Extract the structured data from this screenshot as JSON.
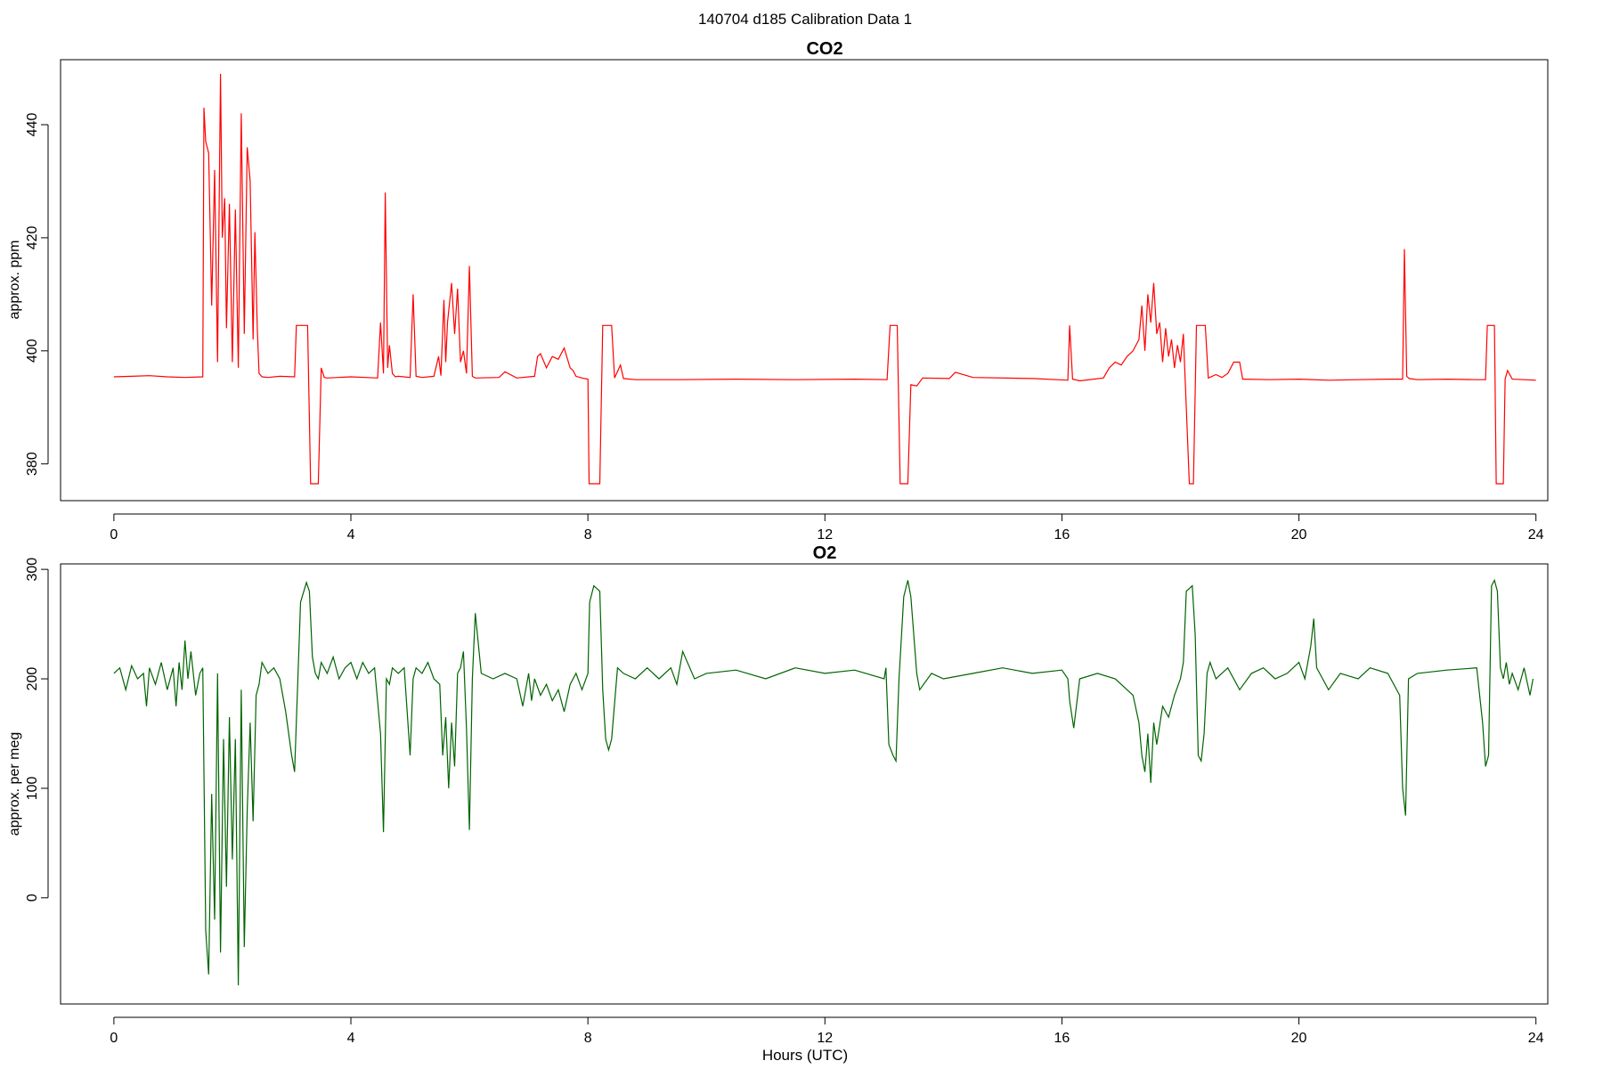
{
  "figure": {
    "suptitle": "140704   d185   Calibration Data 1",
    "xlabel": "Hours (UTC)"
  },
  "chart_data": [
    {
      "type": "line",
      "title": "CO2",
      "xlabel": "",
      "ylabel": "approx. ppm",
      "xlim": [
        -0.9,
        24.2
      ],
      "ylim": [
        373.5,
        451.5
      ],
      "xticks": [
        0,
        4,
        8,
        12,
        16,
        20,
        24
      ],
      "yticks": [
        380,
        400,
        420,
        440
      ],
      "color": "#ff0000",
      "grid": false,
      "series": [
        {
          "x": [
            0.0,
            0.3,
            0.6,
            0.9,
            1.2,
            1.5,
            1.52,
            1.55,
            1.6,
            1.65,
            1.7,
            1.75,
            1.8,
            1.83,
            1.87,
            1.9,
            1.95,
            2.0,
            2.05,
            2.1,
            2.15,
            2.2,
            2.25,
            2.3,
            2.35,
            2.38,
            2.42,
            2.45,
            2.5,
            2.6,
            2.8,
            3.05,
            3.08,
            3.2,
            3.27,
            3.32,
            3.45,
            3.5,
            3.55,
            3.6,
            4.0,
            4.45,
            4.5,
            4.55,
            4.58,
            4.62,
            4.65,
            4.7,
            4.75,
            4.8,
            5.0,
            5.05,
            5.1,
            5.2,
            5.4,
            5.48,
            5.52,
            5.57,
            5.6,
            5.63,
            5.7,
            5.75,
            5.8,
            5.85,
            5.9,
            5.95,
            6.0,
            6.05,
            6.1,
            6.5,
            6.6,
            6.8,
            7.1,
            7.15,
            7.2,
            7.3,
            7.4,
            7.5,
            7.6,
            7.7,
            7.75,
            7.8,
            7.9,
            8.0,
            8.02,
            8.2,
            8.25,
            8.4,
            8.45,
            8.55,
            8.6,
            8.8,
            9.5,
            10.5,
            11.5,
            12.5,
            13.05,
            13.1,
            13.22,
            13.27,
            13.4,
            13.45,
            13.55,
            13.65,
            14.1,
            14.2,
            14.5,
            15.5,
            16.1,
            16.13,
            16.18,
            16.3,
            16.7,
            16.8,
            16.9,
            17.0,
            17.1,
            17.2,
            17.3,
            17.35,
            17.4,
            17.45,
            17.5,
            17.55,
            17.6,
            17.65,
            17.7,
            17.75,
            17.8,
            17.85,
            17.9,
            17.95,
            18.0,
            18.05,
            18.08,
            18.15,
            18.22,
            18.27,
            18.42,
            18.47,
            18.6,
            18.7,
            18.8,
            18.9,
            19.0,
            19.05,
            19.5,
            20.0,
            20.5,
            21.0,
            21.5,
            21.75,
            21.78,
            21.82,
            21.86,
            22.0,
            22.5,
            23.0,
            23.15,
            23.18,
            23.3,
            23.33,
            23.35,
            23.45,
            23.48,
            23.52,
            23.6,
            24.0
          ],
          "y": [
            395.4,
            395.5,
            395.6,
            395.4,
            395.3,
            395.4,
            443.0,
            437.0,
            435.0,
            408.0,
            432.0,
            398.0,
            449.0,
            420.0,
            427.0,
            404.0,
            426.0,
            398.0,
            425.0,
            397.0,
            442.0,
            403.0,
            436.0,
            430.0,
            402.0,
            421.0,
            404.0,
            396.0,
            395.4,
            395.3,
            395.5,
            395.4,
            404.5,
            404.5,
            404.5,
            376.5,
            376.5,
            397.0,
            395.3,
            395.2,
            395.4,
            395.2,
            405.0,
            396.0,
            428.0,
            397.0,
            401.0,
            396.0,
            395.4,
            395.5,
            395.3,
            410.0,
            395.5,
            395.3,
            395.5,
            399.0,
            395.6,
            409.0,
            398.0,
            405.0,
            412.0,
            403.0,
            411.0,
            398.0,
            400.0,
            396.0,
            415.0,
            395.5,
            395.2,
            395.3,
            396.3,
            395.2,
            395.5,
            399.0,
            399.5,
            397.0,
            399.0,
            398.5,
            400.5,
            397.0,
            396.5,
            395.5,
            395.2,
            395.0,
            376.5,
            376.5,
            404.5,
            404.5,
            395.2,
            397.5,
            395.1,
            394.9,
            394.9,
            395.0,
            394.9,
            395.0,
            394.9,
            404.5,
            404.5,
            376.5,
            376.5,
            394.0,
            393.8,
            395.2,
            395.1,
            396.2,
            395.3,
            395.1,
            394.8,
            404.5,
            395.0,
            394.7,
            395.2,
            397.0,
            398.0,
            397.5,
            399.0,
            400.0,
            402.0,
            408.0,
            400.0,
            410.0,
            405.0,
            412.0,
            403.0,
            405.0,
            398.0,
            404.0,
            399.0,
            402.0,
            397.0,
            401.0,
            398.0,
            403.0,
            395.0,
            376.5,
            376.5,
            404.5,
            404.5,
            395.2,
            395.8,
            395.3,
            396.0,
            398.0,
            398.0,
            395.0,
            394.9,
            395.0,
            394.8,
            394.9,
            395.0,
            395.0,
            418.0,
            395.5,
            395.1,
            394.9,
            395.0,
            394.9,
            394.9,
            404.5,
            404.5,
            376.5,
            376.5,
            376.5,
            395.0,
            396.5,
            395.0,
            394.8
          ]
        }
      ]
    },
    {
      "type": "line",
      "title": "O2",
      "xlabel": "Hours (UTC)",
      "ylabel": "approx. per meg",
      "xlim": [
        -0.9,
        24.2
      ],
      "ylim": [
        -97,
        305
      ],
      "xticks": [
        0,
        4,
        8,
        12,
        16,
        20,
        24
      ],
      "yticks": [
        0,
        100,
        200,
        300
      ],
      "color": "#006400",
      "grid": false,
      "series": [
        {
          "x": [
            0.0,
            0.1,
            0.2,
            0.3,
            0.4,
            0.5,
            0.55,
            0.6,
            0.7,
            0.8,
            0.9,
            1.0,
            1.05,
            1.1,
            1.15,
            1.2,
            1.25,
            1.3,
            1.38,
            1.45,
            1.5,
            1.55,
            1.6,
            1.65,
            1.7,
            1.75,
            1.8,
            1.85,
            1.9,
            1.95,
            2.0,
            2.05,
            2.1,
            2.15,
            2.2,
            2.25,
            2.3,
            2.35,
            2.4,
            2.45,
            2.5,
            2.6,
            2.7,
            2.8,
            2.9,
            3.0,
            3.05,
            3.15,
            3.25,
            3.3,
            3.35,
            3.4,
            3.45,
            3.5,
            3.6,
            3.7,
            3.8,
            3.9,
            4.0,
            4.1,
            4.2,
            4.3,
            4.4,
            4.5,
            4.55,
            4.6,
            4.65,
            4.7,
            4.8,
            4.9,
            5.0,
            5.05,
            5.1,
            5.2,
            5.3,
            5.4,
            5.5,
            5.55,
            5.6,
            5.65,
            5.7,
            5.75,
            5.8,
            5.85,
            5.9,
            5.95,
            6.0,
            6.05,
            6.1,
            6.2,
            6.4,
            6.6,
            6.8,
            6.9,
            7.0,
            7.05,
            7.1,
            7.2,
            7.3,
            7.4,
            7.5,
            7.6,
            7.7,
            7.8,
            7.9,
            8.0,
            8.03,
            8.1,
            8.2,
            8.25,
            8.3,
            8.35,
            8.4,
            8.5,
            8.6,
            8.8,
            9.0,
            9.2,
            9.4,
            9.5,
            9.6,
            9.8,
            10.0,
            10.5,
            11.0,
            11.5,
            12.0,
            12.5,
            13.0,
            13.03,
            13.08,
            13.15,
            13.2,
            13.25,
            13.33,
            13.4,
            13.45,
            13.55,
            13.6,
            13.8,
            14.0,
            14.5,
            15.0,
            15.5,
            16.0,
            16.1,
            16.13,
            16.2,
            16.3,
            16.6,
            16.9,
            17.1,
            17.2,
            17.3,
            17.35,
            17.4,
            17.45,
            17.5,
            17.55,
            17.6,
            17.7,
            17.8,
            17.9,
            18.0,
            18.05,
            18.1,
            18.2,
            18.25,
            18.3,
            18.35,
            18.4,
            18.45,
            18.5,
            18.6,
            18.8,
            19.0,
            19.2,
            19.4,
            19.6,
            19.8,
            20.0,
            20.1,
            20.2,
            20.25,
            20.3,
            20.4,
            20.5,
            20.7,
            21.0,
            21.2,
            21.5,
            21.7,
            21.75,
            21.8,
            21.85,
            22.0,
            22.5,
            23.0,
            23.1,
            23.15,
            23.2,
            23.25,
            23.3,
            23.35,
            23.4,
            23.45,
            23.5,
            23.55,
            23.6,
            23.7,
            23.8,
            23.9,
            23.95
          ],
          "y": [
            205.0,
            210.0,
            190.0,
            212.0,
            200.0,
            205.0,
            175.0,
            210.0,
            195.0,
            215.0,
            190.0,
            210.0,
            175.0,
            215.0,
            190.0,
            235.0,
            200.0,
            225.0,
            185.0,
            205.0,
            210.0,
            -30.0,
            -70.0,
            95.0,
            -20.0,
            205.0,
            -50.0,
            145.0,
            10.0,
            165.0,
            35.0,
            145.0,
            -80.0,
            190.0,
            -45.0,
            80.0,
            160.0,
            70.0,
            185.0,
            195.0,
            215.0,
            205.0,
            210.0,
            200.0,
            170.0,
            130.0,
            115.0,
            270.0,
            288.0,
            280.0,
            220.0,
            205.0,
            200.0,
            215.0,
            205.0,
            220.0,
            200.0,
            210.0,
            215.0,
            200.0,
            215.0,
            205.0,
            210.0,
            150.0,
            60.0,
            200.0,
            195.0,
            210.0,
            205.0,
            210.0,
            130.0,
            200.0,
            210.0,
            205.0,
            215.0,
            200.0,
            195.0,
            130.0,
            165.0,
            100.0,
            160.0,
            120.0,
            205.0,
            210.0,
            225.0,
            155.0,
            62.0,
            200.0,
            260.0,
            205.0,
            200.0,
            205.0,
            200.0,
            175.0,
            205.0,
            180.0,
            200.0,
            185.0,
            195.0,
            180.0,
            190.0,
            170.0,
            195.0,
            205.0,
            190.0,
            205.0,
            270.0,
            285.0,
            280.0,
            190.0,
            145.0,
            135.0,
            145.0,
            210.0,
            205.0,
            200.0,
            210.0,
            200.0,
            210.0,
            195.0,
            225.0,
            200.0,
            205.0,
            208.0,
            200.0,
            210.0,
            205.0,
            208.0,
            200.0,
            210.0,
            140.0,
            130.0,
            125.0,
            200.0,
            275.0,
            290.0,
            275.0,
            205.0,
            190.0,
            205.0,
            200.0,
            205.0,
            210.0,
            205.0,
            208.0,
            200.0,
            180.0,
            155.0,
            200.0,
            205.0,
            200.0,
            190.0,
            185.0,
            160.0,
            130.0,
            115.0,
            150.0,
            105.0,
            160.0,
            140.0,
            175.0,
            165.0,
            185.0,
            200.0,
            215.0,
            280.0,
            285.0,
            240.0,
            130.0,
            125.0,
            150.0,
            205.0,
            215.0,
            200.0,
            210.0,
            190.0,
            205.0,
            210.0,
            200.0,
            205.0,
            215.0,
            200.0,
            230.0,
            255.0,
            210.0,
            200.0,
            190.0,
            205.0,
            200.0,
            210.0,
            205.0,
            185.0,
            100.0,
            75.0,
            200.0,
            205.0,
            208.0,
            210.0,
            160.0,
            120.0,
            130.0,
            285.0,
            290.0,
            280.0,
            210.0,
            200.0,
            215.0,
            195.0,
            205.0,
            190.0,
            210.0,
            185.0,
            200.0
          ]
        }
      ]
    }
  ]
}
